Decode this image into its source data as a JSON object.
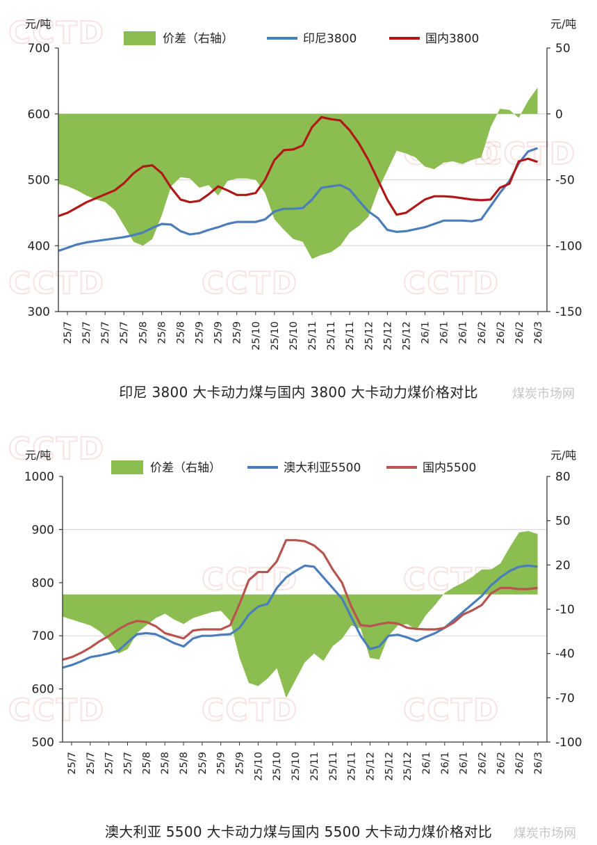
{
  "chart_data": [
    {
      "type": "line",
      "title": "印尼 3800 大卡动力煤与国内 3800 大卡动力煤价格对比",
      "caption_watermark": "煤炭市场网",
      "ylabel_left": "元/吨",
      "ylabel_right": "元/吨",
      "ylim": [
        300,
        700
      ],
      "yticks": [
        300,
        400,
        500,
        600,
        700
      ],
      "ylim_right": [
        -150,
        50
      ],
      "yticks_right": [
        -150,
        -100,
        -50,
        0,
        50
      ],
      "gridlines": [
        400,
        500,
        600
      ],
      "x_ticks": [
        "25/7",
        "25/7",
        "25/7",
        "25/7",
        "25/8",
        "25/8",
        "25/8",
        "25/9",
        "25/9",
        "25/9",
        "25/10",
        "25/10",
        "25/10",
        "25/11",
        "25/11",
        "25/11",
        "25/12",
        "25/12",
        "25/12",
        "26/1",
        "26/1",
        "26/1",
        "26/2",
        "26/2",
        "26/2",
        "26/3"
      ],
      "legend": [
        "价差（右轴）",
        "印尼3800",
        "国内3800"
      ],
      "colors": {
        "spread": "#8cbd50",
        "import": "#4a7ebb",
        "domestic": "#b01818"
      },
      "x": [
        0,
        0.5,
        1,
        1.5,
        2,
        2.5,
        3,
        3.5,
        4,
        4.5,
        5,
        5.5,
        6,
        6.5,
        7,
        7.5,
        8,
        8.5,
        9,
        9.5,
        10,
        10.5,
        11,
        11.5,
        12,
        12.5,
        13,
        13.5,
        14,
        14.5,
        15,
        15.5,
        16,
        16.5,
        17,
        17.5,
        18,
        18.5,
        19,
        19.5,
        20,
        20.5,
        21,
        21.5,
        22,
        22.5,
        23,
        23.5,
        24,
        24.5,
        25,
        25.5
      ],
      "series": [
        {
          "name": "印尼3800",
          "axis": "left",
          "values": [
            392,
            397,
            402,
            405,
            407,
            409,
            411,
            413,
            416,
            420,
            427,
            433,
            432,
            422,
            417,
            419,
            424,
            428,
            433,
            436,
            436,
            436,
            440,
            452,
            456,
            456,
            457,
            470,
            488,
            490,
            492,
            485,
            468,
            452,
            442,
            424,
            421,
            422,
            425,
            428,
            433,
            438,
            438,
            438,
            437,
            440,
            460,
            480,
            498,
            525,
            543,
            548
          ]
        },
        {
          "name": "国内3800",
          "axis": "left",
          "values": [
            445,
            450,
            458,
            466,
            472,
            478,
            484,
            495,
            510,
            520,
            522,
            510,
            488,
            470,
            466,
            468,
            478,
            490,
            484,
            477,
            477,
            480,
            500,
            530,
            545,
            546,
            552,
            580,
            595,
            592,
            590,
            575,
            555,
            530,
            500,
            470,
            447,
            450,
            460,
            470,
            475,
            475,
            474,
            472,
            470,
            469,
            470,
            488,
            494,
            528,
            532,
            527
          ]
        },
        {
          "name": "价差（右轴）",
          "axis": "right",
          "type": "area",
          "values": [
            -53,
            -55,
            -58,
            -62,
            -65,
            -67,
            -73,
            -85,
            -97,
            -100,
            -95,
            -77,
            -55,
            -48,
            -49,
            -56,
            -54,
            -62,
            -51,
            -49,
            -49,
            -50,
            -60,
            -80,
            -88,
            -95,
            -97,
            -110,
            -107,
            -105,
            -100,
            -90,
            -85,
            -78,
            -58,
            -43,
            -28,
            -30,
            -33,
            -40,
            -42,
            -37,
            -36,
            -38,
            -35,
            -33,
            -10,
            4,
            3,
            -3,
            10,
            20
          ]
        }
      ]
    },
    {
      "type": "line",
      "title": "澳大利亚 5500 大卡动力煤与国内 5500 大卡动力煤价格对比",
      "caption_watermark": "煤炭市场网",
      "ylabel_left": "元/吨",
      "ylabel_right": "元/吨",
      "ylim": [
        500,
        1000
      ],
      "yticks": [
        500,
        600,
        700,
        800,
        900,
        1000
      ],
      "ylim_right": [
        -100,
        80
      ],
      "yticks_right": [
        -100,
        -70,
        -40,
        -10,
        20,
        50,
        80
      ],
      "gridlines": [
        700,
        900
      ],
      "x_ticks": [
        "25/7",
        "25/7",
        "25/7",
        "25/7",
        "25/8",
        "25/8",
        "25/8",
        "25/9",
        "25/9",
        "25/9",
        "25/10",
        "25/10",
        "25/10",
        "25/11",
        "25/11",
        "25/11",
        "25/12",
        "25/12",
        "25/12",
        "26/1",
        "26/1",
        "26/1",
        "26/2",
        "26/2",
        "26/2",
        "26/3"
      ],
      "legend": [
        "价差（右轴）",
        "澳大利亚5500",
        "国内5500"
      ],
      "colors": {
        "spread": "#8cbd50",
        "import": "#4a7ebb",
        "domestic": "#b85450"
      },
      "x": [
        0,
        0.5,
        1,
        1.5,
        2,
        2.5,
        3,
        3.5,
        4,
        4.5,
        5,
        5.5,
        6,
        6.5,
        7,
        7.5,
        8,
        8.5,
        9,
        9.5,
        10,
        10.5,
        11,
        11.5,
        12,
        12.5,
        13,
        13.5,
        14,
        14.5,
        15,
        15.5,
        16,
        16.5,
        17,
        17.5,
        18,
        18.5,
        19,
        19.5,
        20,
        20.5,
        21,
        21.5,
        22,
        22.5,
        23,
        23.5,
        24,
        24.5,
        25,
        25.5
      ],
      "series": [
        {
          "name": "澳大利亚5500",
          "axis": "left",
          "values": [
            640,
            645,
            652,
            660,
            663,
            667,
            672,
            688,
            703,
            705,
            703,
            695,
            686,
            680,
            695,
            700,
            700,
            702,
            703,
            715,
            740,
            755,
            760,
            790,
            810,
            822,
            832,
            830,
            810,
            790,
            770,
            735,
            700,
            675,
            680,
            700,
            702,
            697,
            690,
            698,
            705,
            715,
            730,
            745,
            760,
            775,
            795,
            810,
            822,
            830,
            832,
            830
          ]
        },
        {
          "name": "国内5500",
          "axis": "left",
          "values": [
            655,
            660,
            668,
            678,
            690,
            700,
            712,
            722,
            728,
            726,
            718,
            705,
            700,
            695,
            710,
            712,
            712,
            712,
            720,
            760,
            805,
            820,
            820,
            840,
            880,
            880,
            878,
            870,
            855,
            825,
            800,
            755,
            720,
            718,
            722,
            725,
            723,
            715,
            713,
            712,
            712,
            715,
            725,
            740,
            748,
            758,
            780,
            790,
            790,
            788,
            788,
            790
          ]
        },
        {
          "name": "价差（右轴）",
          "axis": "right",
          "type": "area",
          "values": [
            -15,
            -17,
            -19,
            -21,
            -25,
            -31,
            -40,
            -37,
            -26,
            -21,
            -16,
            -13,
            -17,
            -20,
            -16,
            -14,
            -12,
            -11,
            -18,
            -43,
            -60,
            -62,
            -57,
            -50,
            -70,
            -58,
            -46,
            -40,
            -45,
            -35,
            -30,
            -21,
            -23,
            -43,
            -44,
            -28,
            -21,
            -20,
            -24,
            -14,
            -7,
            1,
            5,
            8,
            12,
            17,
            17,
            21,
            32,
            42,
            43,
            41
          ]
        }
      ]
    }
  ],
  "labels": {
    "unit": "元/吨"
  }
}
